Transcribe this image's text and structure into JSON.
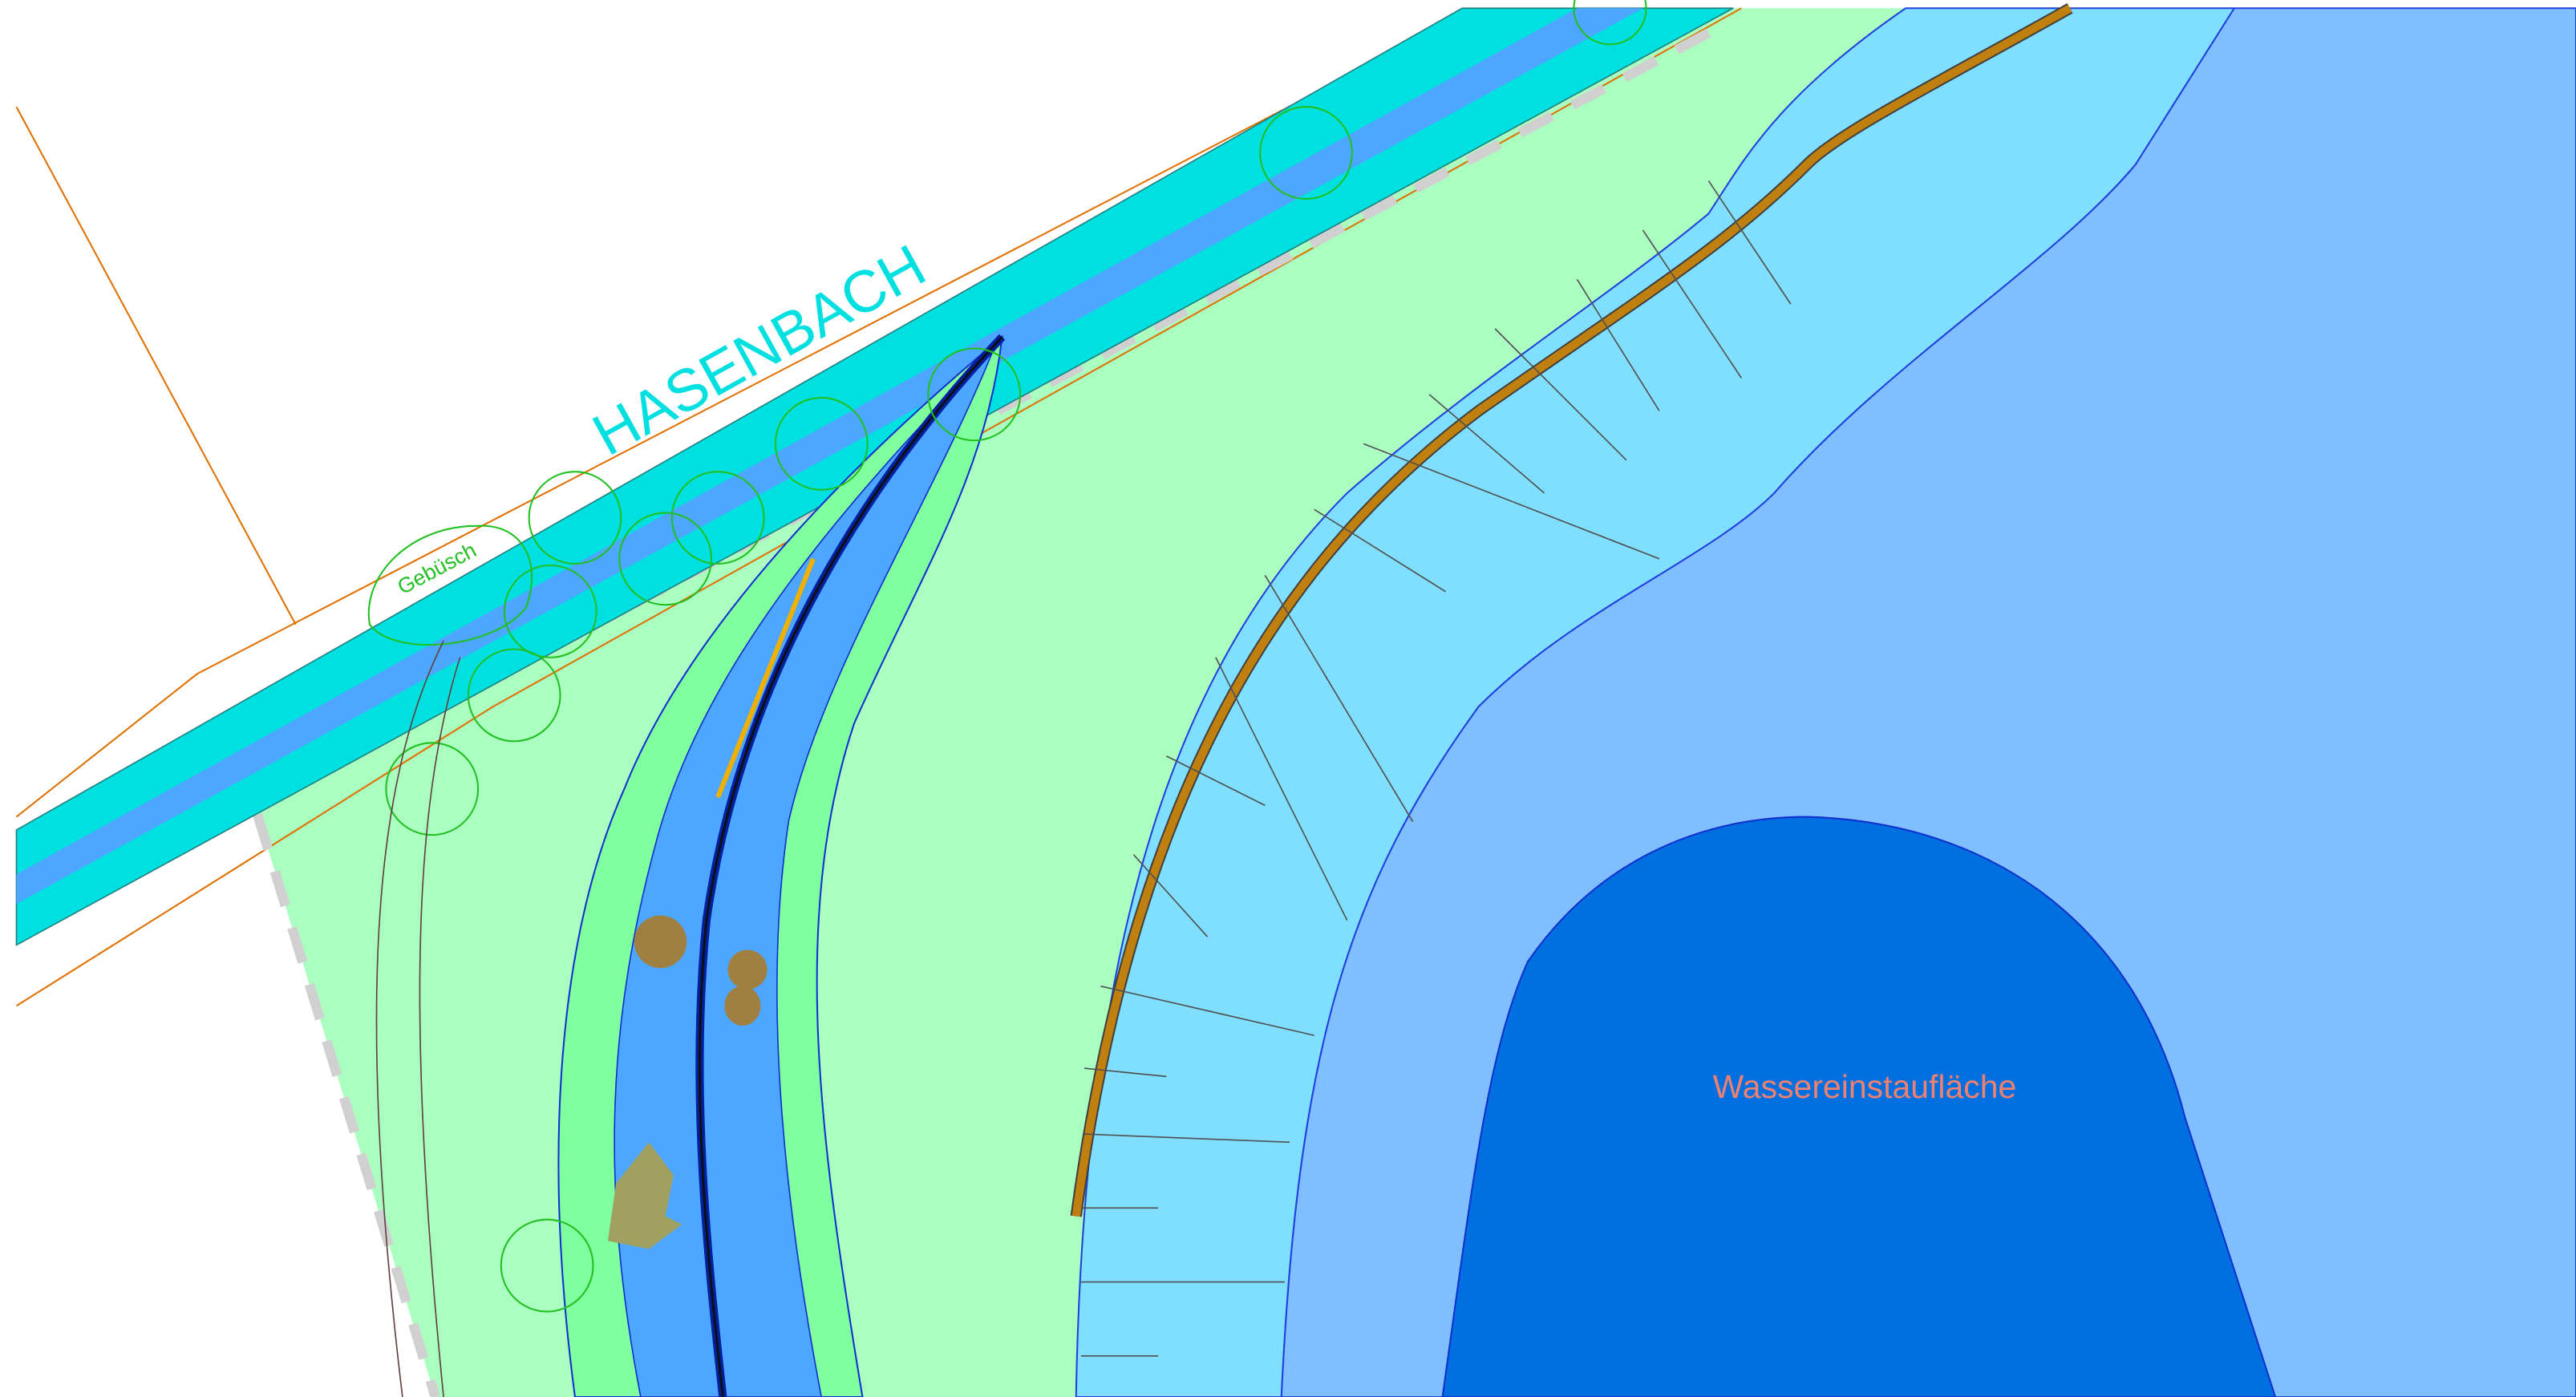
{
  "labels": {
    "stream": "HASENBACH",
    "shrubs": "Gebüsch",
    "pond": "Wassereinstaufläche"
  }
}
